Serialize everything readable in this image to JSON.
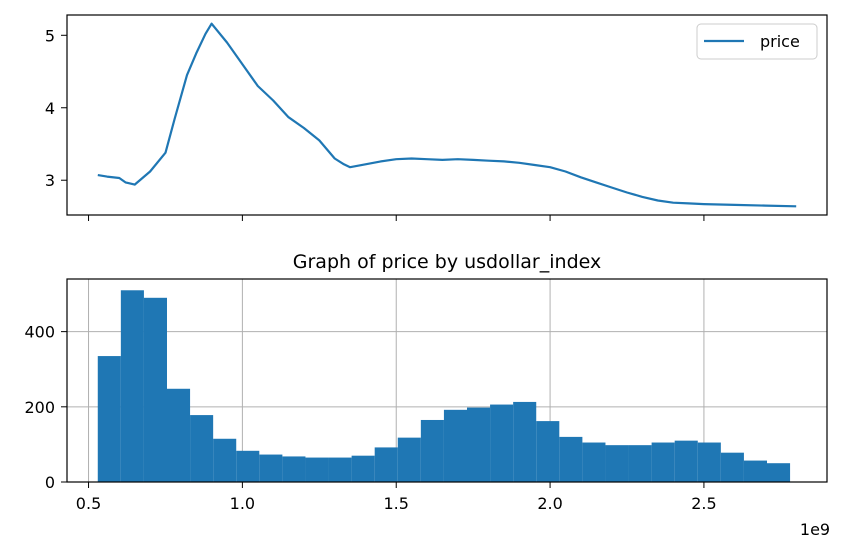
{
  "chart_data": [
    {
      "type": "line",
      "title": "",
      "xlabel": "",
      "ylabel": "",
      "xlim": [
        430000000,
        2900000000
      ],
      "ylim": [
        2.52,
        5.28
      ],
      "yticks": [
        3,
        4,
        5
      ],
      "shared_x_with_next": true,
      "legend": {
        "position": "top-right",
        "entries": [
          "price"
        ]
      },
      "series": [
        {
          "name": "price",
          "color": "#1f77b4",
          "x": [
            530000000,
            560000000,
            600000000,
            620000000,
            650000000,
            700000000,
            750000000,
            780000000,
            820000000,
            850000000,
            880000000,
            900000000,
            950000000,
            1000000000,
            1050000000,
            1100000000,
            1150000000,
            1200000000,
            1250000000,
            1300000000,
            1330000000,
            1350000000,
            1400000000,
            1450000000,
            1500000000,
            1550000000,
            1600000000,
            1650000000,
            1700000000,
            1750000000,
            1800000000,
            1850000000,
            1900000000,
            1950000000,
            2000000000,
            2050000000,
            2100000000,
            2150000000,
            2200000000,
            2250000000,
            2300000000,
            2350000000,
            2400000000,
            2450000000,
            2500000000,
            2600000000,
            2700000000,
            2800000000
          ],
          "y": [
            3.07,
            3.05,
            3.03,
            2.97,
            2.94,
            3.12,
            3.38,
            3.85,
            4.45,
            4.75,
            5.02,
            5.16,
            4.9,
            4.6,
            4.3,
            4.1,
            3.87,
            3.72,
            3.55,
            3.3,
            3.22,
            3.18,
            3.22,
            3.26,
            3.29,
            3.3,
            3.29,
            3.28,
            3.29,
            3.28,
            3.27,
            3.26,
            3.24,
            3.21,
            3.18,
            3.12,
            3.04,
            2.97,
            2.9,
            2.83,
            2.77,
            2.72,
            2.69,
            2.68,
            2.67,
            2.66,
            2.65,
            2.64
          ]
        }
      ]
    },
    {
      "type": "bar",
      "title": "Graph of price by usdollar_index",
      "xlabel": "",
      "ylabel": "",
      "xlim": [
        430000000,
        2900000000
      ],
      "ylim": [
        0,
        540
      ],
      "xticks": [
        "0.5",
        "1.0",
        "1.5",
        "2.0",
        "2.5"
      ],
      "xtick_values": [
        500000000,
        1000000000,
        1500000000,
        2000000000,
        2500000000
      ],
      "yticks": [
        0,
        200,
        400
      ],
      "x_offset_label": "1e9",
      "grid": true,
      "color": "#1f77b4",
      "bin_edges": [
        530000000,
        605000000,
        680000000,
        755000000,
        830000000,
        905000000,
        980000000,
        1055000000,
        1130000000,
        1205000000,
        1280000000,
        1355000000,
        1430000000,
        1505000000,
        1580000000,
        1655000000,
        1730000000,
        1805000000,
        1880000000,
        1955000000,
        2030000000,
        2105000000,
        2180000000,
        2255000000,
        2330000000,
        2405000000,
        2480000000,
        2555000000,
        2630000000,
        2705000000,
        2780000000
      ],
      "values": [
        335,
        510,
        490,
        248,
        178,
        115,
        83,
        73,
        68,
        65,
        65,
        70,
        92,
        118,
        165,
        192,
        198,
        206,
        213,
        162,
        120,
        105,
        98,
        98,
        105,
        110,
        105,
        78,
        57,
        50
      ]
    }
  ]
}
